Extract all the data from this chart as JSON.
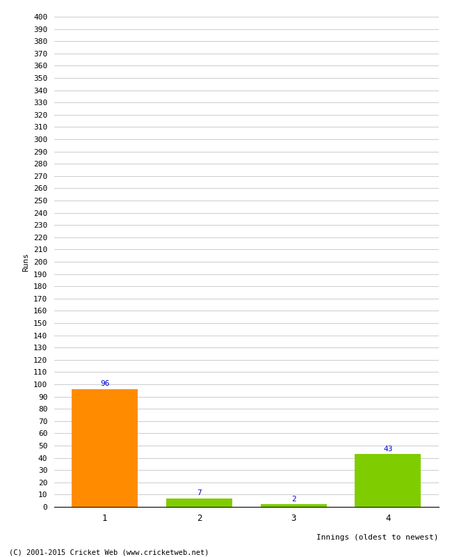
{
  "categories": [
    "1",
    "2",
    "3",
    "4"
  ],
  "values": [
    96,
    7,
    2,
    43
  ],
  "bar_colors": [
    "#FF8C00",
    "#7FCC00",
    "#7FCC00",
    "#7FCC00"
  ],
  "xlabel": "Innings (oldest to newest)",
  "ylabel": "Runs",
  "ylim": [
    0,
    400
  ],
  "yticks": [
    0,
    10,
    20,
    30,
    40,
    50,
    60,
    70,
    80,
    90,
    100,
    110,
    120,
    130,
    140,
    150,
    160,
    170,
    180,
    190,
    200,
    210,
    220,
    230,
    240,
    250,
    260,
    270,
    280,
    290,
    300,
    310,
    320,
    330,
    340,
    350,
    360,
    370,
    380,
    390,
    400
  ],
  "footer": "(C) 2001-2015 Cricket Web (www.cricketweb.net)",
  "background_color": "#FFFFFF",
  "grid_color": "#CCCCCC",
  "label_color": "#0000CC",
  "bar_width": 0.7,
  "figsize": [
    6.5,
    8.0
  ],
  "dpi": 100
}
